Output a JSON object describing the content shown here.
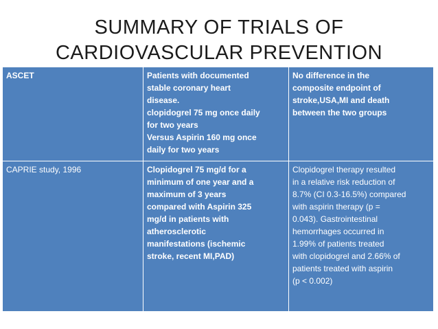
{
  "title": {
    "line1": "SUMMARY OF TRIALS OF",
    "line2": "CARDIOVASCULAR PREVENTION"
  },
  "rows": [
    {
      "trial": "ASCET",
      "design": [
        "Patients with documented",
        "stable coronary heart",
        "disease.",
        "clopidogrel 75 mg once daily",
        "for two years",
        "Versus Aspirin 160 mg once",
        "daily for two years"
      ],
      "result": [
        "No difference in the",
        "composite endpoint of",
        "stroke,USA,MI and death",
        "between the two groups"
      ]
    },
    {
      "trial": "CAPRIE study, 1996",
      "design": [
        "Clopidogrel 75 mg/d for a",
        "minimum of one year and a",
        "maximum of 3 years",
        "compared with Aspirin 325",
        "mg/d in patients with",
        "atherosclerotic",
        "manifestations (ischemic",
        "stroke, recent MI,PAD)"
      ],
      "result": [
        "Clopidogrel therapy resulted",
        "in a relative risk reduction of",
        "8.7% (CI 0.3-16.5%) compared",
        "with aspirin therapy (p =",
        "0.043). Gastrointestinal",
        "hemorrhages occurred in",
        "1.99% of patients treated",
        "with clopidogrel and 2.66% of",
        "patients treated with aspirin",
        "(p < 0.002)"
      ]
    }
  ],
  "colors": {
    "cell_background": "#4f81bd",
    "cell_text": "#ffffff",
    "title_text": "#1a1a1a"
  }
}
